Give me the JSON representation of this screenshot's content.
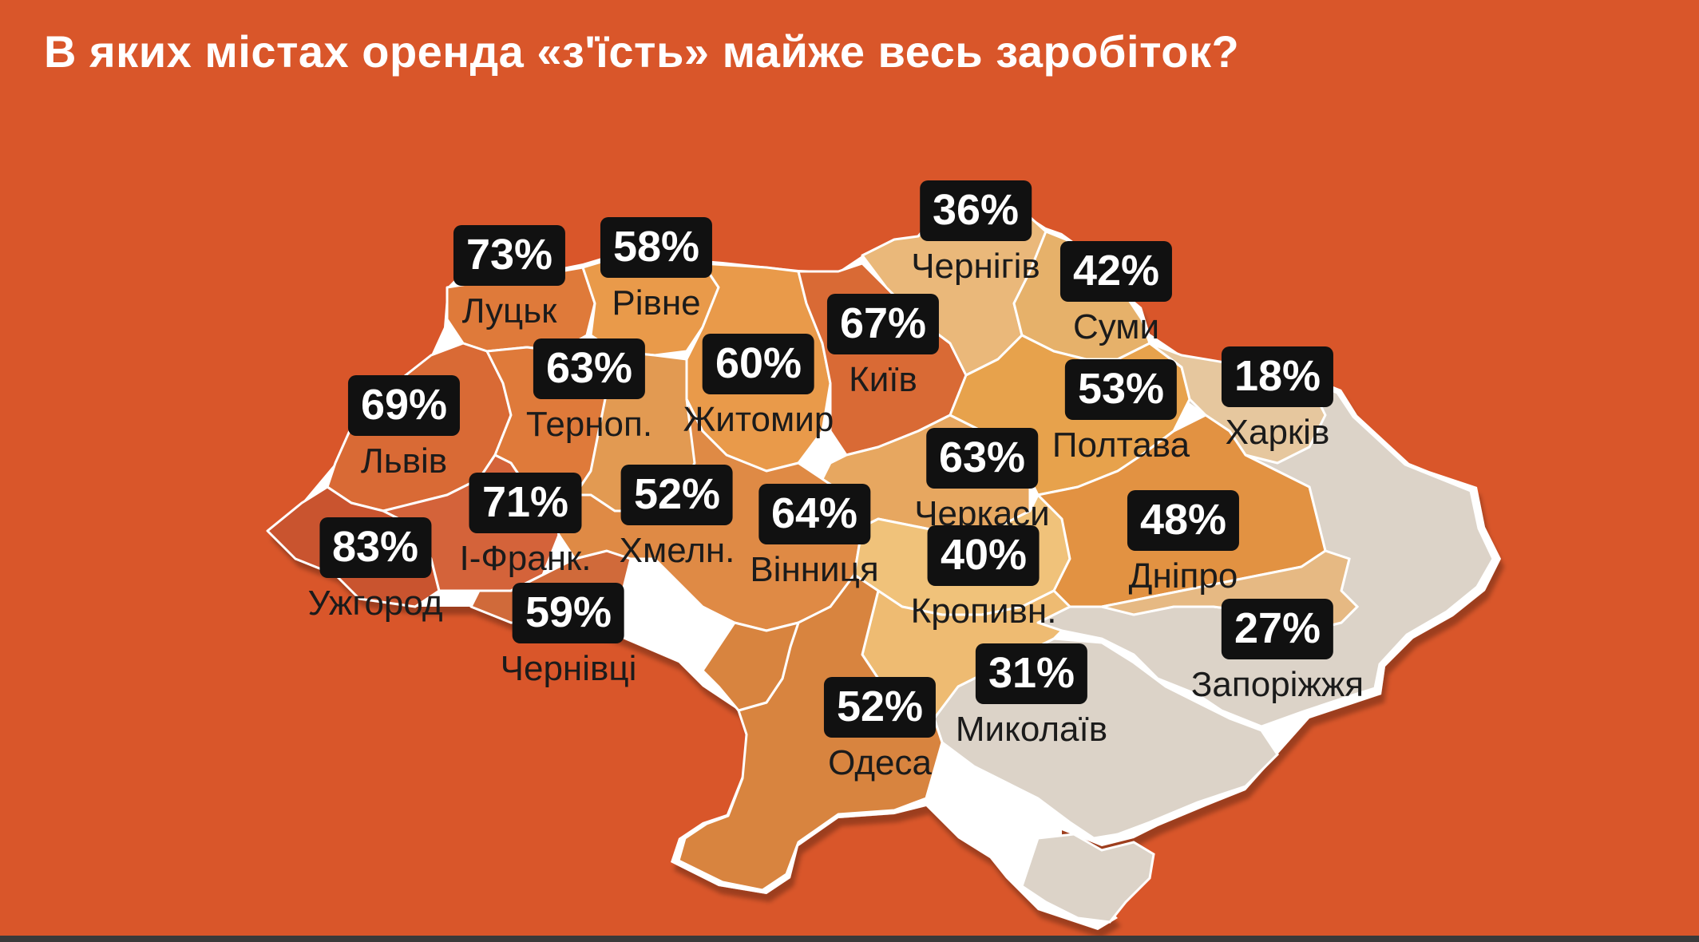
{
  "title": "В яких містах оренда «з'їсть» майже весь заробіток?",
  "colors": {
    "background": "#d9562a",
    "badge": "#111111",
    "badge_text": "#ffffff",
    "city_text": "#1b1b1b",
    "border": "#ffffff",
    "occupied": "#dcd3c8"
  },
  "cities": [
    {
      "name": "Луцьк",
      "value": "73%",
      "share": 73
    },
    {
      "name": "Рівне",
      "value": "58%",
      "share": 58
    },
    {
      "name": "Чернігів",
      "value": "36%",
      "share": 36
    },
    {
      "name": "Суми",
      "value": "42%",
      "share": 42
    },
    {
      "name": "Київ",
      "value": "67%",
      "share": 67
    },
    {
      "name": "Тернoп.",
      "value": "63%",
      "share": 63
    },
    {
      "name": "Житомир",
      "value": "60%",
      "share": 60
    },
    {
      "name": "Львів",
      "value": "69%",
      "share": 69
    },
    {
      "name": "Полтава",
      "value": "53%",
      "share": 53
    },
    {
      "name": "Харків",
      "value": "18%",
      "share": 18
    },
    {
      "name": "Черкаси",
      "value": "63%",
      "share": 63
    },
    {
      "name": "І-Франк.",
      "value": "71%",
      "share": 71
    },
    {
      "name": "Хмелн.",
      "value": "52%",
      "share": 52
    },
    {
      "name": "Вінниця",
      "value": "64%",
      "share": 64
    },
    {
      "name": "Дніпро",
      "value": "48%",
      "share": 48
    },
    {
      "name": "Ужгород",
      "value": "83%",
      "share": 83
    },
    {
      "name": "Кропивн.",
      "value": "40%",
      "share": 40
    },
    {
      "name": "Чернівці",
      "value": "59%",
      "share": 59
    },
    {
      "name": "Запоріжжя",
      "value": "27%",
      "share": 27
    },
    {
      "name": "Миколаїв",
      "value": "31%",
      "share": 31
    },
    {
      "name": "Одеса",
      "value": "52%",
      "share": 52
    }
  ]
}
